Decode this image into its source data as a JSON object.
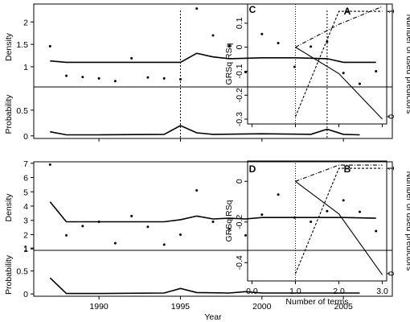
{
  "chart_data": [
    {
      "panel": "A",
      "type": "scatter",
      "sections": [
        {
          "ylabel": "Density",
          "ylim": [
            0.55,
            2.4
          ],
          "yticks": [
            1,
            1.5,
            2
          ],
          "yticklabels": [
            "1",
            "1.5",
            "2"
          ],
          "points": {
            "x": [
              1987,
              1988,
              1989,
              1990,
              1991,
              1992,
              1993,
              1994,
              1995,
              1996,
              1997,
              1998,
              1999,
              2000,
              2001,
              2002,
              2003,
              2004,
              2005,
              2006,
              2007
            ],
            "y": [
              1.46,
              0.8,
              0.77,
              0.74,
              0.68,
              1.19,
              0.76,
              0.74,
              0.72,
              2.3,
              1.7,
              1.47,
              0.88,
              1.73,
              1.53,
              1.0,
              1.45,
              1.56,
              0.86,
              0.62,
              0.9
            ]
          },
          "line": {
            "x": [
              1987,
              1988,
              1990,
              1994,
              1995,
              1996,
              1997,
              1998,
              2000,
              2002,
              2004,
              2005,
              2007
            ],
            "y": [
              1.13,
              1.1,
              1.1,
              1.1,
              1.1,
              1.3,
              1.22,
              1.18,
              1.2,
              1.2,
              1.18,
              1.1,
              1.1
            ]
          }
        },
        {
          "ylabel": "Probability",
          "ylim": [
            -0.05,
            0.95
          ],
          "yticks": [
            0,
            0.5
          ],
          "yticklabels": [
            "0",
            "0.5"
          ],
          "line": {
            "x": [
              1987,
              1988,
              1990,
              1994,
              1995,
              1996,
              1997,
              2000,
              2003,
              2004,
              2005,
              2006
            ],
            "y": [
              0.08,
              0.02,
              0.02,
              0.03,
              0.2,
              0.06,
              0.03,
              0.04,
              0.03,
              0.13,
              0.03,
              0.02
            ]
          },
          "vlines": [
            1995,
            2004
          ]
        }
      ],
      "xlim": [
        1986,
        2008
      ],
      "xticks": [
        1990,
        1995,
        2000,
        2005
      ],
      "xticklabels": [],
      "xlabel": ""
    },
    {
      "panel": "B",
      "type": "scatter",
      "sections": [
        {
          "ylabel": "Density",
          "ylim": [
            0.9,
            7.1
          ],
          "yticks": [
            1,
            2,
            3,
            4,
            5,
            6,
            7
          ],
          "yticklabels": [
            "1",
            "2",
            "3",
            "4",
            "5",
            "6",
            "7"
          ],
          "points": {
            "x": [
              1987,
              1988,
              1989,
              1990,
              1991,
              1992,
              1993,
              1994,
              1995,
              1996,
              1997,
              1998,
              1999,
              2000,
              2001,
              2002,
              2003,
              2004,
              2005,
              2006,
              2007
            ],
            "y": [
              6.9,
              1.95,
              2.6,
              2.9,
              1.4,
              3.3,
              2.55,
              1.3,
              2.0,
              5.1,
              2.9,
              2.4,
              1.95,
              3.4,
              4.8,
              3.2,
              2.9,
              3.65,
              4.4,
              3.6,
              2.25
            ]
          },
          "line": {
            "x": [
              1987,
              1988,
              1990,
              1994,
              1995,
              1996,
              1997,
              1998,
              1999,
              2000,
              2003,
              2005,
              2007
            ],
            "y": [
              4.3,
              2.9,
              2.9,
              2.9,
              3.05,
              3.3,
              3.1,
              3.15,
              3.1,
              3.2,
              3.2,
              3.2,
              3.15
            ]
          }
        },
        {
          "ylabel": "Probability",
          "ylim": [
            -0.05,
            0.95
          ],
          "yticks": [
            0,
            0.5,
            1
          ],
          "yticklabels": [
            "0",
            "0.5",
            "1"
          ],
          "line": {
            "x": [
              1987,
              1988,
              1990,
              1994,
              1995,
              1996,
              1998,
              1999,
              2000,
              2003,
              2005,
              2006
            ],
            "y": [
              0.35,
              0.01,
              0.01,
              0.02,
              0.12,
              0.03,
              0.02,
              0.05,
              0.02,
              0.02,
              0.02,
              0.02
            ]
          }
        }
      ],
      "xlim": [
        1986,
        2008
      ],
      "xticks": [
        1990,
        1995,
        2000,
        2005
      ],
      "xticklabels": [
        "1990",
        "1995",
        "2000",
        "2005"
      ],
      "xlabel": "Year"
    },
    {
      "panel": "C",
      "type": "line",
      "xlim": [
        -0.1,
        3.1
      ],
      "ylim": [
        -0.32,
        0.18
      ],
      "xticks": [
        0,
        1,
        2,
        3
      ],
      "xticklabels": [],
      "yticks": [
        -0.3,
        -0.2,
        -0.1,
        0,
        0.1
      ],
      "yticklabels": [
        "-0.3",
        "-0.2",
        "-0.1",
        "0",
        "0.1"
      ],
      "ylabel_left": "GRSq   RSq",
      "ylabel_right": "Number of used predictors",
      "y2lim": [
        -0.07,
        1.07
      ],
      "y2ticks": [
        0,
        1
      ],
      "y2ticklabels": [
        "0",
        "1"
      ],
      "series": [
        {
          "style": "solid",
          "x": [
            1,
            2,
            3
          ],
          "y": [
            0,
            -0.11,
            -0.3
          ]
        },
        {
          "style": "dashdot",
          "x": [
            1,
            2,
            3
          ],
          "y": [
            0,
            0.095,
            0.17
          ]
        },
        {
          "style": "dashed",
          "axis": "right",
          "x": [
            1,
            2,
            3
          ],
          "y": [
            0,
            1,
            1
          ]
        }
      ],
      "vline": 1
    },
    {
      "panel": "D",
      "type": "line",
      "xlim": [
        -0.1,
        3.1
      ],
      "ylim": [
        -0.49,
        0.1
      ],
      "xticks": [
        0,
        1,
        2,
        3
      ],
      "xticklabels": [
        "0.0",
        "1.0",
        "2.0",
        "3.0"
      ],
      "yticks": [
        -0.4,
        -0.2,
        0
      ],
      "yticklabels": [
        "-0.4",
        "-0.2",
        "0"
      ],
      "xlabel": "Number of terms",
      "ylabel_left": "GRSq   RSq",
      "ylabel_right": "Number of used predictors",
      "y2lim": [
        -0.07,
        1.07
      ],
      "y2ticks": [
        0,
        1
      ],
      "y2ticklabels": [
        "0",
        "1"
      ],
      "series": [
        {
          "style": "solid",
          "x": [
            1,
            2,
            3
          ],
          "y": [
            0,
            -0.16,
            -0.46
          ]
        },
        {
          "style": "dashdot",
          "x": [
            1,
            2,
            3
          ],
          "y": [
            0,
            0.08,
            0.08
          ]
        },
        {
          "style": "dashed",
          "axis": "right",
          "x": [
            1,
            2,
            3
          ],
          "y": [
            0,
            1,
            1
          ]
        }
      ],
      "vline": 1
    }
  ]
}
